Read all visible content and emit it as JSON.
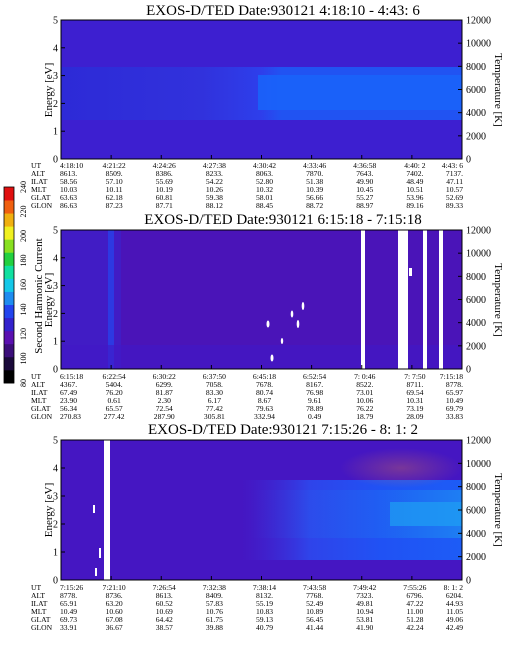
{
  "colorbar": {
    "label": "Second Harmonic Current",
    "ticks": [
      "240",
      "220",
      "200",
      "180",
      "160",
      "140",
      "120",
      "100",
      "80"
    ],
    "colors": [
      "#000000",
      "#1a0a3a",
      "#3b0e7a",
      "#5a10b0",
      "#3322cc",
      "#2244ee",
      "#1e8cf0",
      "#14c8e8",
      "#10e0a0",
      "#22d040",
      "#88e020",
      "#f0f020",
      "#f0b010",
      "#f06010",
      "#e01010"
    ]
  },
  "chart_data": [
    {
      "type": "heatmap",
      "title": "EXOS-D/TED   Date:930121   4:18:10 - 4:43: 6",
      "ylabel": "Energy [eV]",
      "y2label": "Temperature [K]",
      "ylim": [
        0,
        5
      ],
      "y2lim": [
        0,
        12000
      ],
      "yticks": [
        "0",
        "1",
        "2",
        "3",
        "4",
        "5"
      ],
      "y2ticks": [
        "0",
        "2000",
        "4000",
        "6000",
        "8000",
        "10000",
        "12000"
      ],
      "rows": [
        {
          "name": "UT",
          "values": [
            "4:18:10",
            "4:21:22",
            "4:24:26",
            "4:27:38",
            "4:30:42",
            "4:33:46",
            "4:36:58",
            "4:40: 2",
            "4:43: 6"
          ]
        },
        {
          "name": "ALT",
          "values": [
            "8613.",
            "8509.",
            "8386.",
            "8233.",
            "8063.",
            "7870.",
            "7643.",
            "7402.",
            "7137."
          ]
        },
        {
          "name": "ILAT",
          "values": [
            "58.56",
            "57.10",
            "55.69",
            "54.22",
            "52.80",
            "51.38",
            "49.90",
            "48.49",
            "47.11"
          ]
        },
        {
          "name": "MLT",
          "values": [
            "10.03",
            "10.11",
            "10.19",
            "10.26",
            "10.32",
            "10.39",
            "10.45",
            "10.51",
            "10.57"
          ]
        },
        {
          "name": "GLAT",
          "values": [
            "63.63",
            "62.18",
            "60.81",
            "59.38",
            "58.01",
            "56.66",
            "55.27",
            "53.96",
            "52.69"
          ]
        },
        {
          "name": "GLON",
          "values": [
            "86.63",
            "87.23",
            "87.71",
            "88.12",
            "88.45",
            "88.72",
            "88.97",
            "89.16",
            "89.33"
          ]
        }
      ]
    },
    {
      "type": "heatmap",
      "title": "EXOS-D/TED   Date:930121   6:15:18 - 7:15:18",
      "ylabel": "Energy [eV]",
      "y2label": "Temperature [K]",
      "ylim": [
        0,
        5
      ],
      "y2lim": [
        0,
        12000
      ],
      "yticks": [
        "0",
        "1",
        "2",
        "3",
        "4",
        "5"
      ],
      "y2ticks": [
        "0",
        "2000",
        "4000",
        "6000",
        "8000",
        "10000",
        "12000"
      ],
      "rows": [
        {
          "name": "UT",
          "values": [
            "6:15:18",
            "6:22:54",
            "6:30:22",
            "6:37:50",
            "6:45:18",
            "6:52:54",
            "7: 0:46",
            "7: 7:50",
            "7:15:18"
          ]
        },
        {
          "name": "ALT",
          "values": [
            "4367.",
            "5404.",
            "6299.",
            "7058.",
            "7678.",
            "8167.",
            "8522.",
            "8711.",
            "8778."
          ]
        },
        {
          "name": "ILAT",
          "values": [
            "67.49",
            "76.20",
            "81.87",
            "83.30",
            "80.74",
            "76.98",
            "73.01",
            "69.54",
            "65.97"
          ]
        },
        {
          "name": "MLT",
          "values": [
            "23.90",
            "0.61",
            "2.30",
            "6.17",
            "8.67",
            "9.61",
            "10.06",
            "10.31",
            "10.49"
          ]
        },
        {
          "name": "GLAT",
          "values": [
            "56.34",
            "65.57",
            "72.54",
            "77.42",
            "79.63",
            "78.89",
            "76.22",
            "73.19",
            "69.79"
          ]
        },
        {
          "name": "GLON",
          "values": [
            "270.83",
            "277.42",
            "287.90",
            "305.81",
            "332.94",
            "0.49",
            "18.79",
            "28.09",
            "33.83"
          ]
        }
      ]
    },
    {
      "type": "heatmap",
      "title": "EXOS-D/TED   Date:930121   7:15:26 - 8: 1: 2",
      "ylabel": "Energy [eV]",
      "y2label": "Temperature [K]",
      "ylim": [
        0,
        5
      ],
      "y2lim": [
        0,
        12000
      ],
      "yticks": [
        "0",
        "1",
        "2",
        "3",
        "4",
        "5"
      ],
      "y2ticks": [
        "0",
        "2000",
        "4000",
        "6000",
        "8000",
        "10000",
        "12000"
      ],
      "rows": [
        {
          "name": "UT",
          "values": [
            "7:15:26",
            "7:21:10",
            "7:26:54",
            "7:32:38",
            "7:38:14",
            "7:43:58",
            "7:49:42",
            "7:55:26",
            "8: 1: 2"
          ]
        },
        {
          "name": "ALT",
          "values": [
            "8778.",
            "8736.",
            "8613.",
            "8409.",
            "8132.",
            "7768.",
            "7323.",
            "6796.",
            "6204."
          ]
        },
        {
          "name": "ILAT",
          "values": [
            "65.91",
            "63.20",
            "60.52",
            "57.83",
            "55.19",
            "52.49",
            "49.81",
            "47.22",
            "44.93"
          ]
        },
        {
          "name": "MLT",
          "values": [
            "10.49",
            "10.60",
            "10.69",
            "10.76",
            "10.83",
            "10.89",
            "10.94",
            "11.00",
            "11.05"
          ]
        },
        {
          "name": "GLAT",
          "values": [
            "69.73",
            "67.08",
            "64.42",
            "61.75",
            "59.13",
            "56.45",
            "53.81",
            "51.28",
            "49.06"
          ]
        },
        {
          "name": "GLON",
          "values": [
            "33.91",
            "36.67",
            "38.57",
            "39.88",
            "40.79",
            "41.44",
            "41.90",
            "42.24",
            "42.49"
          ]
        }
      ]
    }
  ]
}
